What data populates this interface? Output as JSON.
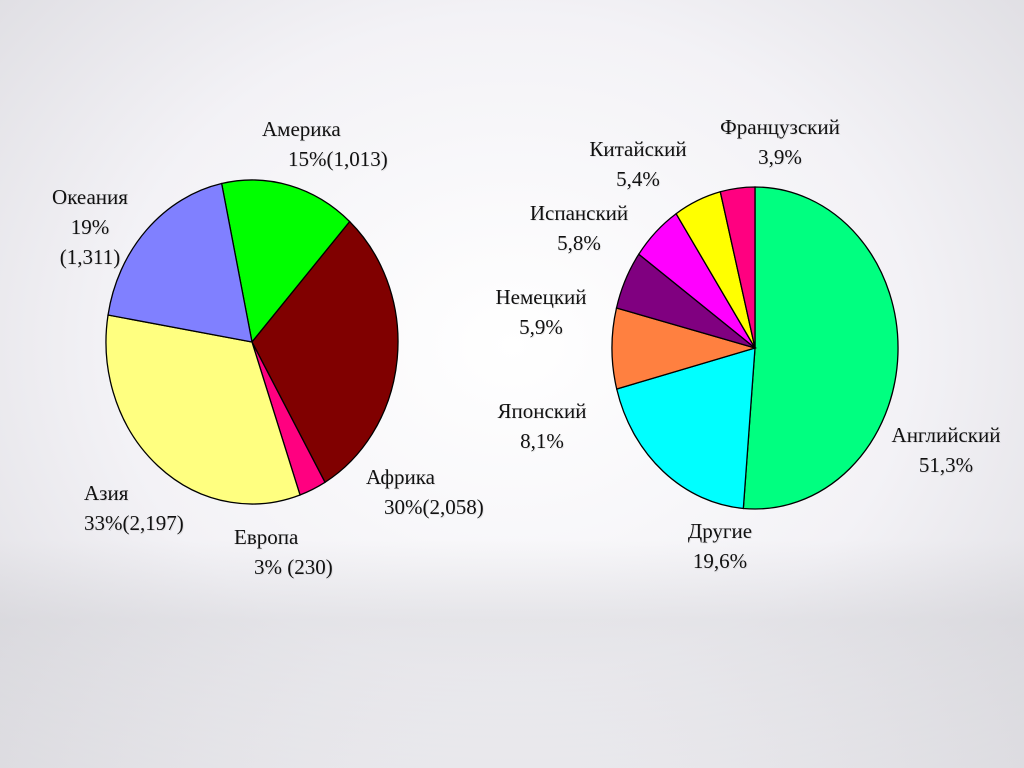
{
  "chart_data": [
    {
      "type": "pie",
      "title": "",
      "slices": [
        {
          "label": "Америка",
          "value": 15,
          "display": "15%(1,013)",
          "count": 1013,
          "color": "#00ff00"
        },
        {
          "label": "Африка",
          "value": 30,
          "display": "30%(2,058)",
          "count": 2058,
          "color": "#800000"
        },
        {
          "label": "Европа",
          "value": 3,
          "display": "3% (230)",
          "count": 230,
          "color": "#ff0080"
        },
        {
          "label": "Азия",
          "value": 33,
          "display": "33%(2,197)",
          "count": 2197,
          "color": "#ffff80"
        },
        {
          "label": "Океания",
          "value": 19,
          "display_pct": "19%",
          "display_count": "(1,311)",
          "count": 1311,
          "color": "#8080ff"
        }
      ]
    },
    {
      "type": "pie",
      "title": "",
      "slices": [
        {
          "label": "Английский",
          "value": 51.3,
          "display": "51,3%",
          "color": "#00ff80"
        },
        {
          "label": "Другие",
          "value": 19.6,
          "display": "19,6%",
          "color": "#00ffff"
        },
        {
          "label": "Японский",
          "value": 8.1,
          "display": "8,1%",
          "color": "#ff8040"
        },
        {
          "label": "Немецкий",
          "value": 5.9,
          "display": "5,9%",
          "color": "#800080"
        },
        {
          "label": "Испанский",
          "value": 5.8,
          "display": "5,8%",
          "color": "#ff00ff"
        },
        {
          "label": "Китайский",
          "value": 5.4,
          "display": "5,4%",
          "color": "#ffff00"
        },
        {
          "label": "Французский",
          "value": 3.9,
          "display": "3,9%",
          "color": "#ff0080"
        }
      ]
    }
  ]
}
